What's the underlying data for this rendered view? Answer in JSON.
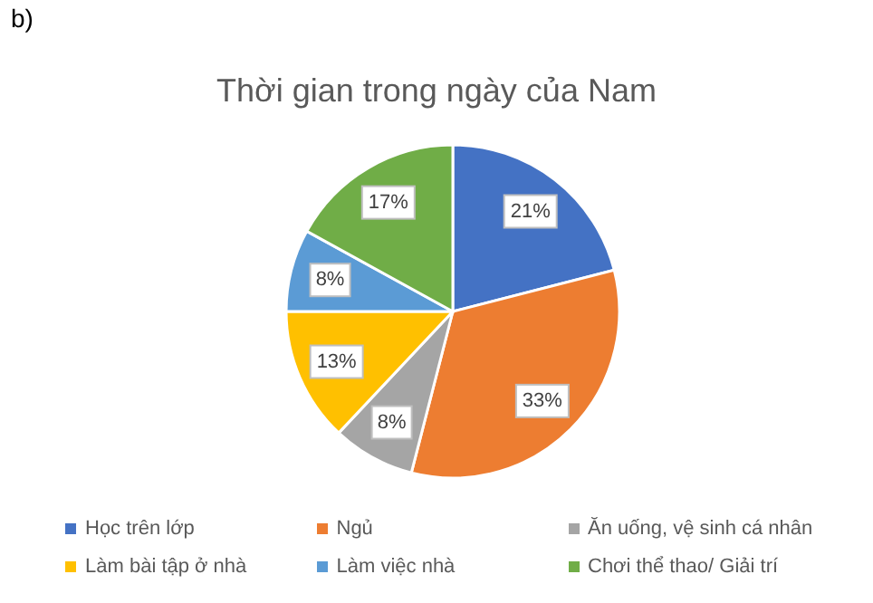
{
  "chart_data": {
    "type": "pie",
    "title": "Thời gian trong ngày của Nam",
    "annotations": [
      "b)"
    ],
    "categories": [
      "Học trên lớp",
      "Ngủ",
      "Ăn uống, vệ sinh cá nhân",
      "Làm bài tập ở nhà",
      "Làm việc nhà",
      "Chơi thể thao/ Giải trí"
    ],
    "values": [
      21,
      33,
      8,
      13,
      8,
      17
    ],
    "colors": [
      "#4472c4",
      "#ed7d31",
      "#a5a5a5",
      "#ffc000",
      "#5b9bd5",
      "#70ad47"
    ],
    "value_labels": [
      "21%",
      "33%",
      "8%",
      "13%",
      "8%",
      "17%"
    ],
    "legend": "bottom"
  }
}
